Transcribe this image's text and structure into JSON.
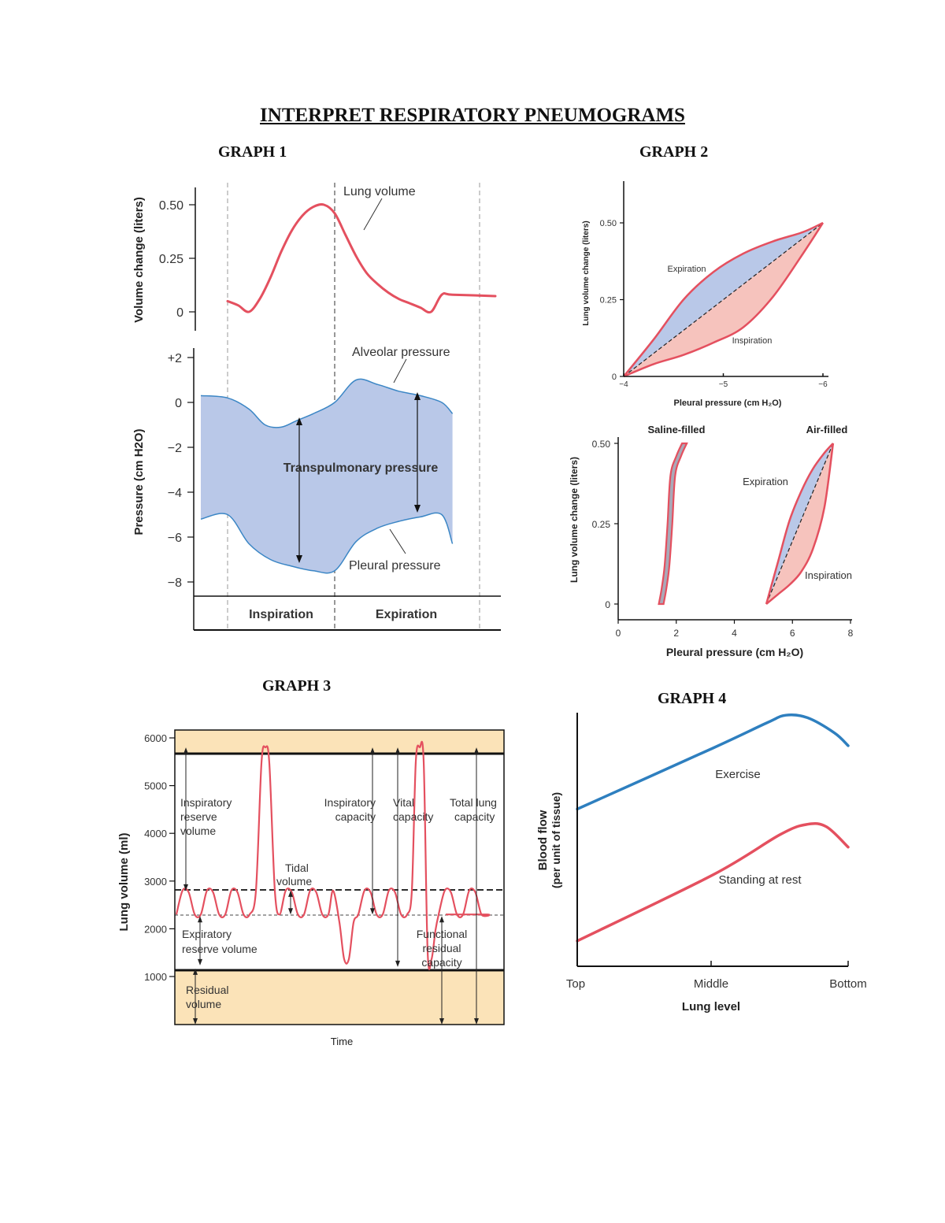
{
  "page_title": "INTERPRET RESPIRATORY PNEUMOGRAMS",
  "graph_titles": [
    "GRAPH 1",
    "GRAPH 2",
    "GRAPH 3",
    "GRAPH 4"
  ],
  "colors": {
    "red_curve": "#e4505f",
    "blue_fill": "#b9c8e8",
    "blue_line": "#3b86c5",
    "pink_fill": "#f6c3bd",
    "tan_band": "#fbe3b8",
    "exercise_line": "#2e7fbf"
  },
  "chart_data": [
    {
      "type": "line",
      "id": "graph1",
      "panels": [
        {
          "name": "volume",
          "ylabel": "Volume change (liters)",
          "yticks": [
            0,
            0.25,
            0.5
          ],
          "ytick_labels": [
            "0",
            "0.25",
            "0.50"
          ],
          "ylim": [
            0,
            0.5
          ],
          "series": [
            {
              "name": "Lung volume",
              "x": [
                0,
                0.1,
                0.2,
                0.3,
                0.4,
                0.5,
                0.6,
                0.7,
                0.8,
                0.9,
                1.0,
                1.1,
                1.2,
                1.3,
                1.4,
                1.5,
                1.6,
                1.7,
                1.8,
                1.9,
                2.0,
                2.1,
                2.2
              ],
              "y": [
                0.05,
                0.03,
                0.0,
                0.06,
                0.16,
                0.28,
                0.38,
                0.45,
                0.49,
                0.5,
                0.46,
                0.36,
                0.26,
                0.18,
                0.13,
                0.09,
                0.06,
                0.04,
                0.02,
                0.0,
                0.08,
                0.08,
                0.08
              ]
            }
          ]
        },
        {
          "name": "pressure",
          "ylabel": "Pressure (cm H2O)",
          "yticks": [
            2,
            0,
            -2,
            -4,
            -6,
            -8
          ],
          "ytick_labels": [
            "+2",
            "0",
            "−2",
            "−4",
            "−6",
            "−8"
          ],
          "ylim": [
            -8,
            2
          ],
          "series": [
            {
              "name": "Alveolar pressure",
              "x": [
                -0.25,
                0,
                0.2,
                0.35,
                0.5,
                0.65,
                0.8,
                1.0,
                1.2,
                1.4,
                1.6,
                1.8,
                2.0,
                2.1
              ],
              "y": [
                0.3,
                0.2,
                -0.3,
                -1.0,
                -1.1,
                -0.8,
                -0.5,
                0.0,
                1.0,
                0.8,
                0.5,
                0.3,
                0.0,
                -0.5
              ]
            },
            {
              "name": "Pleural pressure",
              "x": [
                -0.25,
                0,
                0.2,
                0.4,
                0.6,
                0.8,
                1.0,
                1.2,
                1.4,
                1.6,
                1.8,
                2.0,
                2.1
              ],
              "y": [
                -5.2,
                -5.0,
                -6.3,
                -7.0,
                -7.3,
                -7.5,
                -7.5,
                -6.2,
                -5.6,
                -5.3,
                -5.1,
                -5.0,
                -6.3
              ]
            }
          ],
          "annotation": "Transpulmonary pressure"
        }
      ],
      "phases": [
        "Inspiration",
        "Expiration"
      ]
    },
    {
      "type": "area",
      "id": "graph2_top",
      "xlabel": "Pleural pressure (cm H₂O)",
      "ylabel": "Lung volume change (liters)",
      "xticks": [
        -4,
        -5,
        -6
      ],
      "xtick_labels": [
        "−4",
        "−5",
        "−6"
      ],
      "yticks": [
        0,
        0.25,
        0.5
      ],
      "ytick_labels": [
        "0",
        "0.25",
        "0.50"
      ],
      "xlim": [
        -4,
        -6
      ],
      "ylim": [
        0,
        0.5
      ],
      "series": [
        {
          "name": "Expiration",
          "x": [
            -4.0,
            -4.3,
            -4.6,
            -4.9,
            -5.2,
            -5.5,
            -5.8,
            -6.0
          ],
          "y": [
            0.0,
            0.12,
            0.25,
            0.34,
            0.4,
            0.44,
            0.47,
            0.5
          ]
        },
        {
          "name": "Inspiration",
          "x": [
            -4.0,
            -4.3,
            -4.6,
            -4.9,
            -5.2,
            -5.5,
            -5.8,
            -6.0
          ],
          "y": [
            0.0,
            0.04,
            0.07,
            0.11,
            0.16,
            0.26,
            0.4,
            0.5
          ]
        }
      ]
    },
    {
      "type": "area",
      "id": "graph2_bottom",
      "xlabel": "Pleural pressure (cm H₂O)",
      "ylabel": "Lung volume change (liters)",
      "xticks": [
        0,
        2,
        4,
        6,
        8
      ],
      "yticks": [
        0,
        0.25,
        0.5
      ],
      "ytick_labels": [
        "0",
        "0.25",
        "0.50"
      ],
      "xlim": [
        0,
        8
      ],
      "ylim": [
        0,
        0.5
      ],
      "groups": [
        "Saline-filled",
        "Air-filled"
      ],
      "series": [
        {
          "name": "Saline-filled",
          "x": [
            1.4,
            1.5,
            1.6,
            1.7,
            1.8,
            2.0,
            2.2
          ],
          "y": [
            0.0,
            0.05,
            0.12,
            0.25,
            0.4,
            0.46,
            0.5
          ]
        },
        {
          "name": "Expiration",
          "x": [
            5.1,
            5.5,
            5.9,
            6.3,
            6.7,
            7.1,
            7.4
          ],
          "y": [
            0.0,
            0.13,
            0.26,
            0.35,
            0.42,
            0.47,
            0.5
          ]
        },
        {
          "name": "Inspiration",
          "x": [
            5.1,
            5.5,
            5.9,
            6.3,
            6.7,
            7.1,
            7.4
          ],
          "y": [
            0.0,
            0.03,
            0.06,
            0.1,
            0.17,
            0.3,
            0.5
          ]
        }
      ],
      "labels": [
        "Expiration",
        "Inspiration"
      ]
    },
    {
      "type": "line",
      "id": "graph3",
      "ylabel": "Lung volume (ml)",
      "xlabel": "Time",
      "yticks": [
        1000,
        2000,
        3000,
        4000,
        5000,
        6000
      ],
      "ylim": [
        0,
        6000
      ],
      "levels": {
        "max": 5800,
        "tidal_top": 2800,
        "tidal_bottom": 2300,
        "residual": 1200
      },
      "series": [
        {
          "name": "Lung volume",
          "cycles": [
            "tidal",
            "tidal",
            "tidal",
            "max_inspiration",
            "tidal",
            "tidal",
            "max_expiration",
            "tidal",
            "tidal",
            "max_inspiration_then_max_expiration",
            "tidal",
            "tidal"
          ]
        }
      ],
      "labels": {
        "irv": [
          "Inspiratory",
          "reserve",
          "volume"
        ],
        "tidal": [
          "Tidal",
          "volume"
        ],
        "ic": [
          "Inspiratory",
          "capacity"
        ],
        "vc": [
          "Vital",
          "capacity"
        ],
        "tlc": [
          "Total lung",
          "capacity"
        ],
        "erv": [
          "Expiratory",
          "reserve volume"
        ],
        "frc": [
          "Functional",
          "residual",
          "capacity"
        ],
        "rv": [
          "Residual",
          "volume"
        ]
      }
    },
    {
      "type": "line",
      "id": "graph4",
      "xlabel": "Lung level",
      "ylabel": [
        "Blood flow",
        "(per unit of tissue)"
      ],
      "x_categories": [
        "Top",
        "Middle",
        "Bottom"
      ],
      "series": [
        {
          "name": "Exercise",
          "x": [
            0,
            0.5,
            0.7,
            0.77,
            0.85,
            0.95,
            1.0
          ],
          "y": [
            0.62,
            0.86,
            0.96,
            0.99,
            0.98,
            0.92,
            0.87
          ]
        },
        {
          "name": "Standing at rest",
          "x": [
            0,
            0.5,
            0.75,
            0.85,
            0.92,
            1.0
          ],
          "y": [
            0.1,
            0.36,
            0.52,
            0.56,
            0.55,
            0.47
          ]
        }
      ]
    }
  ]
}
